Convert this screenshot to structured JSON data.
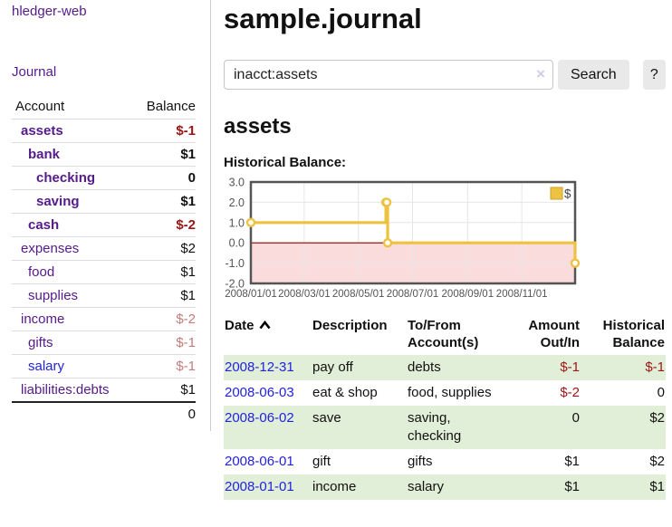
{
  "palette": {
    "purple": "#551a8b",
    "blue": "#2222dd",
    "dark_red": "#9e1414",
    "faded_red": "#c47c7c",
    "green_row": "#e2efd8",
    "chart_yellow": "#edc240",
    "chart_pink": "#fbdcdc",
    "chart_border": "#545454",
    "zero_line": "#8b0000"
  },
  "sidebar": {
    "app_title": "hledger-web",
    "nav_journal": "Journal",
    "table": {
      "col_account": "Account",
      "col_balance": "Balance",
      "rows": [
        {
          "name": "assets",
          "balance": "$-1"
        },
        {
          "name": "bank",
          "balance": "$1"
        },
        {
          "name": "checking",
          "balance": "0"
        },
        {
          "name": "saving",
          "balance": "$1"
        },
        {
          "name": "cash",
          "balance": "$-2"
        },
        {
          "name": "expenses",
          "balance": "$2"
        },
        {
          "name": "food",
          "balance": "$1"
        },
        {
          "name": "supplies",
          "balance": "$1"
        },
        {
          "name": "income",
          "balance": "$-2"
        },
        {
          "name": "gifts",
          "balance": "$-1"
        },
        {
          "name": "salary",
          "balance": "$-1"
        },
        {
          "name": "liabilities:debts",
          "balance": "$1"
        }
      ],
      "total": "0"
    }
  },
  "main": {
    "title": "sample.journal",
    "search": {
      "value": "inacct:assets",
      "clear_icon": "×",
      "button_label": "Search",
      "help_label": "?"
    },
    "account_heading": "assets",
    "chart_label": "Historical Balance:"
  },
  "chart_data": {
    "type": "line",
    "stepped": true,
    "series": [
      {
        "name": "$",
        "color": "#edc240",
        "points": [
          [
            "2008-01-01",
            1
          ],
          [
            "2008-06-01",
            2
          ],
          [
            "2008-06-02",
            2
          ],
          [
            "2008-06-03",
            0
          ],
          [
            "2008-12-31",
            -1
          ]
        ]
      }
    ],
    "ylim": [
      -2,
      3
    ],
    "yticks": [
      "3.0",
      "2.0",
      "1.0",
      "0.0",
      "-1.0",
      "-2.0"
    ],
    "xticks": [
      "2008/01/01",
      "2008/03/01",
      "2008/05/01",
      "2008/07/01",
      "2008/09/01",
      "2008/11/01"
    ],
    "xrange": [
      "2008-01-01",
      "2008-12-31"
    ],
    "legend_position": "top-right",
    "grid": true,
    "negative_region_shaded": true
  },
  "transactions": {
    "headers": {
      "date": "Date",
      "description": "Description",
      "accounts_line1": "To/From",
      "accounts_line2": "Account(s)",
      "amount_line1": "Amount",
      "amount_line2": "Out/In",
      "balance_line1": "Historical",
      "balance_line2": "Balance"
    },
    "rows": [
      {
        "date": "2008-12-31",
        "description": "pay off",
        "accounts": "debts",
        "amount": "$-1",
        "balance": "$-1"
      },
      {
        "date": "2008-06-03",
        "description": "eat & shop",
        "accounts": "food, supplies",
        "amount": "$-2",
        "balance": "0"
      },
      {
        "date": "2008-06-02",
        "description": "save",
        "accounts": "saving, checking",
        "amount": "0",
        "balance": "$2"
      },
      {
        "date": "2008-06-01",
        "description": "gift",
        "accounts": "gifts",
        "amount": "$1",
        "balance": "$2"
      },
      {
        "date": "2008-01-01",
        "description": "income",
        "accounts": "salary",
        "amount": "$1",
        "balance": "$1"
      }
    ]
  }
}
